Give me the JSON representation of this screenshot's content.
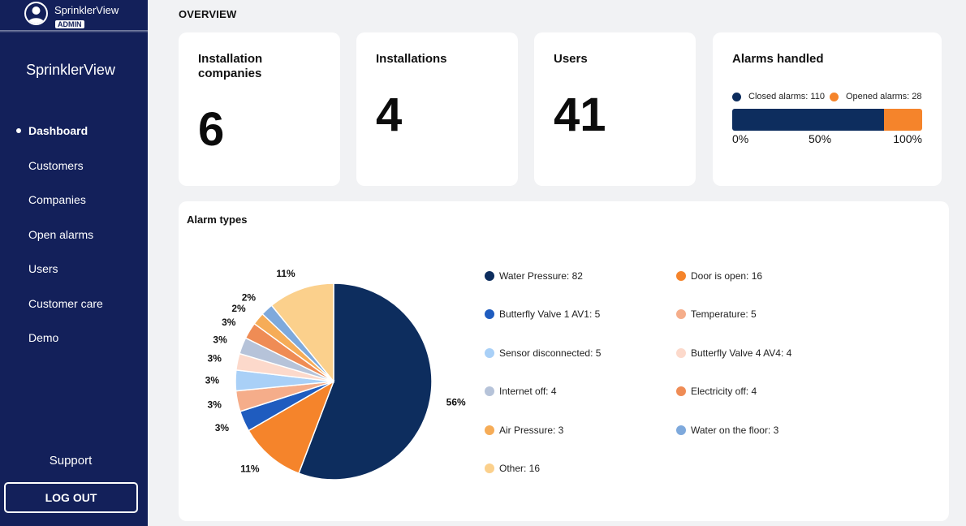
{
  "user": {
    "name": "SprinklerView",
    "role": "ADMIN"
  },
  "sidebar": {
    "brand": "SprinklerView",
    "items": [
      {
        "label": "Dashboard",
        "active": true
      },
      {
        "label": "Customers"
      },
      {
        "label": "Companies"
      },
      {
        "label": "Open alarms"
      },
      {
        "label": "Users"
      },
      {
        "label": "Customer care"
      },
      {
        "label": "Demo"
      }
    ],
    "support": "Support",
    "logout": "LOG OUT"
  },
  "page_title": "OVERVIEW",
  "stats": {
    "installation_companies": {
      "label": "Installation companies",
      "value": "6"
    },
    "installations": {
      "label": "Installations",
      "value": "4"
    },
    "users": {
      "label": "Users",
      "value": "41"
    }
  },
  "alarms_handled": {
    "title": "Alarms handled",
    "closed_label": "Closed alarms: 110",
    "opened_label": "Opened alarms: 28",
    "closed": 110,
    "opened": 28,
    "colors": {
      "closed": "#0d2d5e",
      "opened": "#f5842b"
    },
    "ticks": [
      "0%",
      "50%",
      "100%"
    ]
  },
  "alarm_types": {
    "title": "Alarm types"
  },
  "chart_data": {
    "type": "pie",
    "title": "Alarm types",
    "slices": [
      {
        "name": "Water Pressure",
        "value": 82,
        "label": "56%",
        "color": "#0d2d5e",
        "legend": "Water Pressure: 82"
      },
      {
        "name": "Door is open",
        "value": 16,
        "label": "11%",
        "color": "#f5842b",
        "legend": "Door is open: 16"
      },
      {
        "name": "Butterfly Valve 1 AV1",
        "value": 5,
        "label": "3%",
        "color": "#1f5cbf",
        "legend": "Butterfly Valve 1 AV1: 5"
      },
      {
        "name": "Temperature",
        "value": 5,
        "label": "3%",
        "color": "#f5ad8a",
        "legend": "Temperature: 5"
      },
      {
        "name": "Sensor disconnected",
        "value": 5,
        "label": "3%",
        "color": "#a9d0f7",
        "legend": "Sensor disconnected: 5"
      },
      {
        "name": "Butterfly Valve 4 AV4",
        "value": 4,
        "label": "3%",
        "color": "#fcd9cb",
        "legend": "Butterfly Valve 4 AV4: 4"
      },
      {
        "name": "Internet off",
        "value": 4,
        "label": "3%",
        "color": "#b6c3d9",
        "legend": "Internet off: 4"
      },
      {
        "name": "Electricity off",
        "value": 4,
        "label": "3%",
        "color": "#ef8c55",
        "legend": "Electricity off: 4"
      },
      {
        "name": "Air Pressure",
        "value": 3,
        "label": "2%",
        "color": "#f6ac57",
        "legend": "Air Pressure: 3"
      },
      {
        "name": "Water on the floor",
        "value": 3,
        "label": "2%",
        "color": "#7ea9dc",
        "legend": "Water on the floor: 3"
      },
      {
        "name": "Other",
        "value": 16,
        "label": "11%",
        "color": "#fbd08c",
        "legend": "Other: 16"
      }
    ]
  }
}
